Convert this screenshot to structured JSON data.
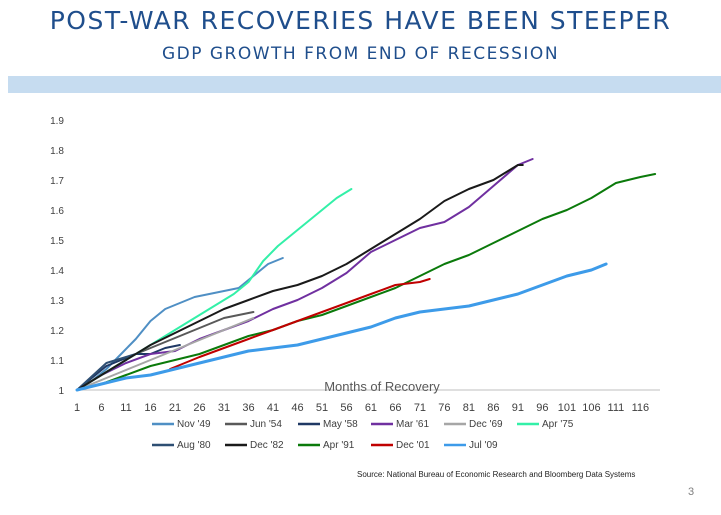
{
  "slide": {
    "title": "POST-WAR RECOVERIES HAVE BEEN STEEPER",
    "subtitle": "GDP GROWTH FROM END OF RECESSION",
    "source": "Source:  National Bureau of Economic Research and Bloomberg Data Systems",
    "page_number": "3"
  },
  "chart_data": {
    "type": "line",
    "xlabel": "Months of Recovery",
    "ylabel": "",
    "xlim": [
      1,
      120
    ],
    "ylim": [
      1,
      1.9
    ],
    "x_ticks": [
      1,
      6,
      11,
      16,
      21,
      26,
      31,
      36,
      41,
      46,
      51,
      56,
      61,
      66,
      71,
      76,
      81,
      86,
      91,
      96,
      101,
      106,
      111,
      116
    ],
    "y_ticks": [
      1,
      1.1,
      1.2,
      1.3,
      1.4,
      1.5,
      1.6,
      1.7,
      1.8,
      1.9
    ],
    "y_tick_labels": [
      "1",
      "1.1",
      "1.2",
      "1.3",
      "1.4",
      "1.5",
      "1.6",
      "1.7",
      "1.8",
      "1.9"
    ],
    "grid": false,
    "legend_position": "bottom",
    "series": [
      {
        "name": "Nov '49",
        "color": "#4f8fc4",
        "width": 2,
        "x": [
          1,
          4,
          7,
          10,
          13,
          16,
          19,
          22,
          25,
          28,
          31,
          34,
          37,
          40,
          43
        ],
        "y": [
          1.0,
          1.03,
          1.07,
          1.12,
          1.17,
          1.23,
          1.27,
          1.29,
          1.31,
          1.32,
          1.33,
          1.34,
          1.38,
          1.42,
          1.44
        ]
      },
      {
        "name": "Jun '54",
        "color": "#595959",
        "width": 2,
        "x": [
          1,
          4,
          7,
          10,
          13,
          16,
          19,
          22,
          25,
          28,
          31,
          34,
          37
        ],
        "y": [
          1.0,
          1.03,
          1.06,
          1.09,
          1.12,
          1.14,
          1.16,
          1.18,
          1.2,
          1.22,
          1.24,
          1.25,
          1.26
        ]
      },
      {
        "name": "May '58",
        "color": "#1f3864",
        "width": 2,
        "x": [
          1,
          4,
          7,
          10,
          13,
          16,
          19,
          22
        ],
        "y": [
          1.0,
          1.04,
          1.08,
          1.1,
          1.12,
          1.12,
          1.14,
          1.15
        ]
      },
      {
        "name": "Mar '61",
        "color": "#7030a0",
        "width": 2,
        "x": [
          1,
          6,
          11,
          16,
          21,
          26,
          31,
          36,
          41,
          46,
          51,
          56,
          61,
          66,
          71,
          76,
          81,
          86,
          91,
          94
        ],
        "y": [
          1.0,
          1.05,
          1.09,
          1.12,
          1.13,
          1.17,
          1.2,
          1.23,
          1.27,
          1.3,
          1.34,
          1.39,
          1.46,
          1.5,
          1.54,
          1.56,
          1.61,
          1.68,
          1.75,
          1.77
        ]
      },
      {
        "name": "Dec '69",
        "color": "#a6a6a6",
        "width": 2,
        "x": [
          1,
          4,
          7,
          10,
          13,
          16,
          19,
          22,
          25,
          28,
          31,
          34,
          37
        ],
        "y": [
          1.0,
          1.02,
          1.04,
          1.06,
          1.08,
          1.1,
          1.12,
          1.14,
          1.16,
          1.18,
          1.2,
          1.22,
          1.24
        ]
      },
      {
        "name": "Apr '75",
        "color": "#33f0a8",
        "width": 2,
        "x": [
          1,
          5,
          9,
          13,
          17,
          21,
          25,
          29,
          33,
          36,
          39,
          42,
          45,
          48,
          51,
          54,
          57
        ],
        "y": [
          1.0,
          1.04,
          1.08,
          1.12,
          1.16,
          1.2,
          1.24,
          1.28,
          1.32,
          1.36,
          1.43,
          1.48,
          1.52,
          1.56,
          1.6,
          1.64,
          1.67
        ]
      },
      {
        "name": "Aug '80",
        "color": "#2e4f73",
        "width": 2,
        "x": [
          1,
          3,
          5,
          7,
          9,
          11,
          13
        ],
        "y": [
          1.0,
          1.03,
          1.06,
          1.09,
          1.1,
          1.11,
          1.12
        ]
      },
      {
        "name": "Dec '82",
        "color": "#1a1a1a",
        "width": 2,
        "x": [
          1,
          6,
          11,
          16,
          21,
          26,
          31,
          36,
          41,
          46,
          51,
          56,
          61,
          66,
          71,
          76,
          81,
          86,
          91,
          92
        ],
        "y": [
          1.0,
          1.05,
          1.1,
          1.15,
          1.19,
          1.23,
          1.27,
          1.3,
          1.33,
          1.35,
          1.38,
          1.42,
          1.47,
          1.52,
          1.57,
          1.63,
          1.67,
          1.7,
          1.75,
          1.75
        ]
      },
      {
        "name": "Apr '91",
        "color": "#0b7a0b",
        "width": 2,
        "x": [
          1,
          6,
          11,
          16,
          21,
          26,
          31,
          36,
          41,
          46,
          51,
          56,
          61,
          66,
          71,
          76,
          81,
          86,
          91,
          96,
          101,
          106,
          111,
          116,
          119
        ],
        "y": [
          1.0,
          1.02,
          1.05,
          1.08,
          1.1,
          1.12,
          1.15,
          1.18,
          1.2,
          1.23,
          1.25,
          1.28,
          1.31,
          1.34,
          1.38,
          1.42,
          1.45,
          1.49,
          1.53,
          1.57,
          1.6,
          1.64,
          1.69,
          1.71,
          1.72
        ]
      },
      {
        "name": "Dec '01",
        "color": "#c00000",
        "width": 2,
        "x": [
          20,
          26,
          31,
          36,
          41,
          46,
          51,
          56,
          61,
          66,
          71,
          73
        ],
        "y": [
          1.07,
          1.11,
          1.14,
          1.17,
          1.2,
          1.23,
          1.26,
          1.29,
          1.32,
          1.35,
          1.36,
          1.37
        ]
      },
      {
        "name": "Jul '09",
        "color": "#3d9be9",
        "width": 3,
        "x": [
          1,
          6,
          11,
          16,
          21,
          26,
          31,
          36,
          41,
          46,
          51,
          56,
          61,
          66,
          71,
          76,
          81,
          86,
          91,
          96,
          101,
          106,
          109
        ],
        "y": [
          1.0,
          1.02,
          1.04,
          1.05,
          1.07,
          1.09,
          1.11,
          1.13,
          1.14,
          1.15,
          1.17,
          1.19,
          1.21,
          1.24,
          1.26,
          1.27,
          1.28,
          1.3,
          1.32,
          1.35,
          1.38,
          1.4,
          1.42
        ]
      }
    ]
  }
}
